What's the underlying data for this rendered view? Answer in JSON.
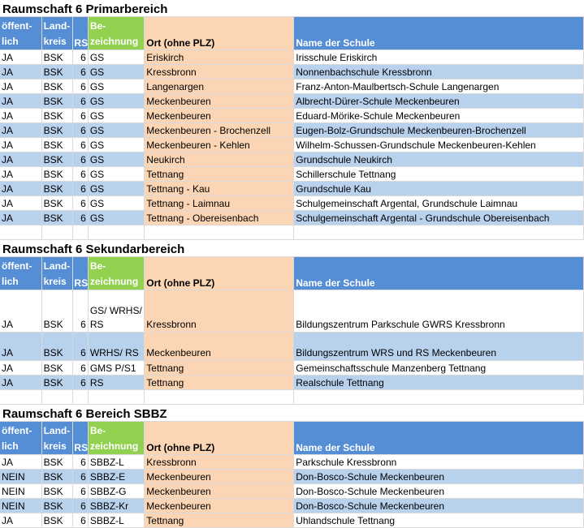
{
  "sections": [
    {
      "title": "Raumschaft 6 Primarbereich",
      "header": {
        "col1_line1": "öffent-",
        "col1_line2": "lich",
        "col2_line1": "Land-",
        "col2_line2": "kreis",
        "col3": "RS",
        "col4_line1": "Be-",
        "col4_line2": "zeichnung",
        "col5": "Ort (ohne PLZ)",
        "col6": "Name der Schule"
      },
      "rows": [
        [
          "JA",
          "BSK",
          "6",
          "GS",
          "Eriskirch",
          "Irisschule Eriskirch"
        ],
        [
          "JA",
          "BSK",
          "6",
          "GS",
          "Kressbronn",
          "Nonnenbachschule Kressbronn"
        ],
        [
          "JA",
          "BSK",
          "6",
          "GS",
          "Langenargen",
          "Franz-Anton-Maulbertsch-Schule Langenargen"
        ],
        [
          "JA",
          "BSK",
          "6",
          "GS",
          "Meckenbeuren",
          "Albrecht-Dürer-Schule Meckenbeuren"
        ],
        [
          "JA",
          "BSK",
          "6",
          "GS",
          "Meckenbeuren",
          "Eduard-Mörike-Schule Meckenbeuren"
        ],
        [
          "JA",
          "BSK",
          "6",
          "GS",
          "Meckenbeuren  -  Brochenzell",
          "Eugen-Bolz-Grundschule Meckenbeuren-Brochenzell"
        ],
        [
          "JA",
          "BSK",
          "6",
          "GS",
          "Meckenbeuren  -  Kehlen",
          "Wilhelm-Schussen-Grundschule Meckenbeuren-Kehlen"
        ],
        [
          "JA",
          "BSK",
          "6",
          "GS",
          "Neukirch",
          "Grundschule Neukirch"
        ],
        [
          "JA",
          "BSK",
          "6",
          "GS",
          "Tettnang",
          "Schillerschule Tettnang"
        ],
        [
          "JA",
          "BSK",
          "6",
          "GS",
          "Tettnang  -  Kau",
          "Grundschule Kau"
        ],
        [
          "JA",
          "BSK",
          "6",
          "GS",
          "Tettnang - Laimnau",
          "Schulgemeinschaft Argental, Grundschule Laimnau"
        ],
        [
          "JA",
          "BSK",
          "6",
          "GS",
          "Tettnang - Obereisenbach",
          "Schulgemeinschaft Argental - Grundschule Obereisenbach"
        ]
      ]
    },
    {
      "title": "Raumschaft 6 Sekundarbereich",
      "header": {
        "col1_line1": "öffent-",
        "col1_line2": "lich",
        "col2_line1": "Land-",
        "col2_line2": "kreis",
        "col3": "RS",
        "col4_line1": "Be-",
        "col4_line2": "zeichnung",
        "col5": "Ort (ohne PLZ)",
        "col6": "Name der Schule"
      },
      "rows": [
        [
          "JA",
          "BSK",
          "6",
          "GS/ WRHS/ RS",
          "Kressbronn",
          "Bildungszentrum Parkschule GWRS Kressbronn"
        ],
        [
          "JA",
          "BSK",
          "6",
          "WRHS/ RS",
          "Meckenbeuren",
          "Bildungszentrum  WRS und RS Meckenbeuren"
        ],
        [
          "JA",
          "BSK",
          "6",
          "GMS P/S1",
          "Tettnang",
          "Gemeinschaftsschule Manzenberg Tettnang"
        ],
        [
          "JA",
          "BSK",
          "6",
          "RS",
          "Tettnang",
          "Realschule Tettnang"
        ]
      ]
    },
    {
      "title": "Raumschaft 6 Bereich SBBZ",
      "header": {
        "col1_line1": "öffent-",
        "col1_line2": "lich",
        "col2_line1": "Land-",
        "col2_line2": "kreis",
        "col3": "RS",
        "col4_line1": "Be-",
        "col4_line2": "zeichnung",
        "col5": "Ort (ohne PLZ)",
        "col6": "Name der Schule"
      },
      "rows": [
        [
          "JA",
          "BSK",
          "6",
          "SBBZ-L",
          "Kressbronn",
          "Parkschule Kressbronn"
        ],
        [
          "NEIN",
          "BSK",
          "6",
          "SBBZ-E",
          "Meckenbeuren",
          "Don-Bosco-Schule Meckenbeuren"
        ],
        [
          "NEIN",
          "BSK",
          "6",
          "SBBZ-G",
          "Meckenbeuren",
          "Don-Bosco-Schule Meckenbeuren"
        ],
        [
          "NEIN",
          "BSK",
          "6",
          "SBBZ-Kr",
          "Meckenbeuren",
          "Don-Bosco-Schule Meckenbeuren"
        ],
        [
          "JA",
          "BSK",
          "6",
          "SBBZ-L",
          "Tettnang",
          "Uhlandschule Tettnang"
        ]
      ]
    }
  ],
  "colors": {
    "header_blue": "#558ed5",
    "header_green": "#92d050",
    "ort_peach": "#fcd5b4",
    "row_alt_blue": "#b8d1ed"
  }
}
